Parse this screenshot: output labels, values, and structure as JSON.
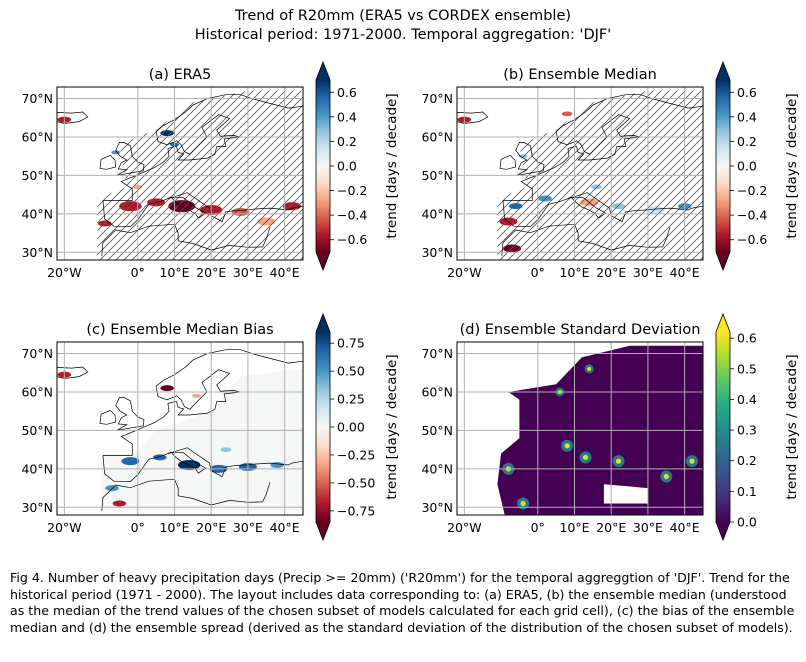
{
  "figure": {
    "title_line1": "Trend of R20mm (ERA5 vs CORDEX ensemble)",
    "title_line2": "Historical period: 1971-2000. Temporal aggregation: 'DJF'",
    "caption": "Fig 4. Number of heavy precipitation days (Precip >= 20mm) ('R20mm') for the temporal aggreggtion of 'DJF'. Trend for the historical period (1971 - 2000). The layout includes data corresponding to: (a) ERA5, (b) the ensemble median (understood as the median of the trend values of the chosen subset of models calculated for each grid cell), (c) the bias of the ensemble median and (d) the ensemble spread (derived as the standard deviation of the distribution of the chosen subset of models)."
  },
  "chart_data": [
    {
      "type": "heatmap",
      "title": "(a) ERA5",
      "lon_ticks": [
        "20°W",
        "0°",
        "10°E",
        "20°E",
        "30°E",
        "40°E"
      ],
      "lat_ticks": [
        "70°N",
        "60°N",
        "50°N",
        "40°N",
        "30°N"
      ],
      "lon_range": [
        -22,
        45
      ],
      "lat_range": [
        28,
        73
      ],
      "hatched": true,
      "colorbar": {
        "label": "trend [days / decade]",
        "colormap": "RdBu",
        "range": [
          -0.7,
          0.7
        ],
        "ticks": [
          "0.6",
          "0.4",
          "0.2",
          "0.0",
          "−0.2",
          "−0.4",
          "−0.6"
        ],
        "tick_values": [
          0.6,
          0.4,
          0.2,
          0.0,
          -0.2,
          -0.4,
          -0.6
        ]
      }
    },
    {
      "type": "heatmap",
      "title": "(b) Ensemble Median",
      "lon_ticks": [
        "20°W",
        "0°",
        "10°E",
        "20°E",
        "30°E",
        "40°E"
      ],
      "lat_ticks": [
        "70°N",
        "60°N",
        "50°N",
        "40°N",
        "30°N"
      ],
      "lon_range": [
        -22,
        45
      ],
      "lat_range": [
        28,
        73
      ],
      "hatched": true,
      "colorbar": {
        "label": "trend [days / decade]",
        "colormap": "RdBu",
        "range": [
          -0.7,
          0.7
        ],
        "ticks": [
          "0.6",
          "0.4",
          "0.2",
          "0.0",
          "−0.2",
          "−0.4",
          "−0.6"
        ],
        "tick_values": [
          0.6,
          0.4,
          0.2,
          0.0,
          -0.2,
          -0.4,
          -0.6
        ]
      }
    },
    {
      "type": "heatmap",
      "title": "(c) Ensemble Median Bias",
      "lon_ticks": [
        "20°W",
        "0°",
        "10°E",
        "20°E",
        "30°E",
        "40°E"
      ],
      "lat_ticks": [
        "70°N",
        "60°N",
        "50°N",
        "40°N",
        "30°N"
      ],
      "lon_range": [
        -22,
        45
      ],
      "lat_range": [
        28,
        73
      ],
      "hatched": false,
      "colorbar": {
        "label": "trend [days / decade]",
        "colormap": "RdBu",
        "range": [
          -0.85,
          0.85
        ],
        "ticks": [
          "0.75",
          "0.50",
          "0.25",
          "0.00",
          "−0.25",
          "−0.50",
          "−0.75"
        ],
        "tick_values": [
          0.75,
          0.5,
          0.25,
          0.0,
          -0.25,
          -0.5,
          -0.75
        ]
      }
    },
    {
      "type": "heatmap",
      "title": "(d) Ensemble Standard Deviation",
      "lon_ticks": [
        "20°W",
        "0°",
        "10°E",
        "20°E",
        "30°E",
        "40°E"
      ],
      "lat_ticks": [
        "70°N",
        "60°N",
        "50°N",
        "40°N",
        "30°N"
      ],
      "lon_range": [
        -22,
        45
      ],
      "lat_range": [
        28,
        73
      ],
      "hatched": false,
      "colorbar": {
        "label": "trend [days / decade]",
        "colormap": "viridis",
        "range": [
          0,
          0.62
        ],
        "ticks": [
          "0.6",
          "0.5",
          "0.4",
          "0.3",
          "0.2",
          "0.1",
          "0.0"
        ],
        "tick_values": [
          0.6,
          0.5,
          0.4,
          0.3,
          0.2,
          0.1,
          0.0
        ]
      }
    }
  ],
  "colors": {
    "dark_red": "#67001f",
    "red": "#b2182b",
    "light_red": "#f4a582",
    "white": "#f7f7f7",
    "light_blue": "#92c5de",
    "blue": "#2166ac",
    "dark_blue": "#053061",
    "viridis_low": "#440154",
    "viridis_mid": "#21918c",
    "viridis_high": "#fde725"
  }
}
